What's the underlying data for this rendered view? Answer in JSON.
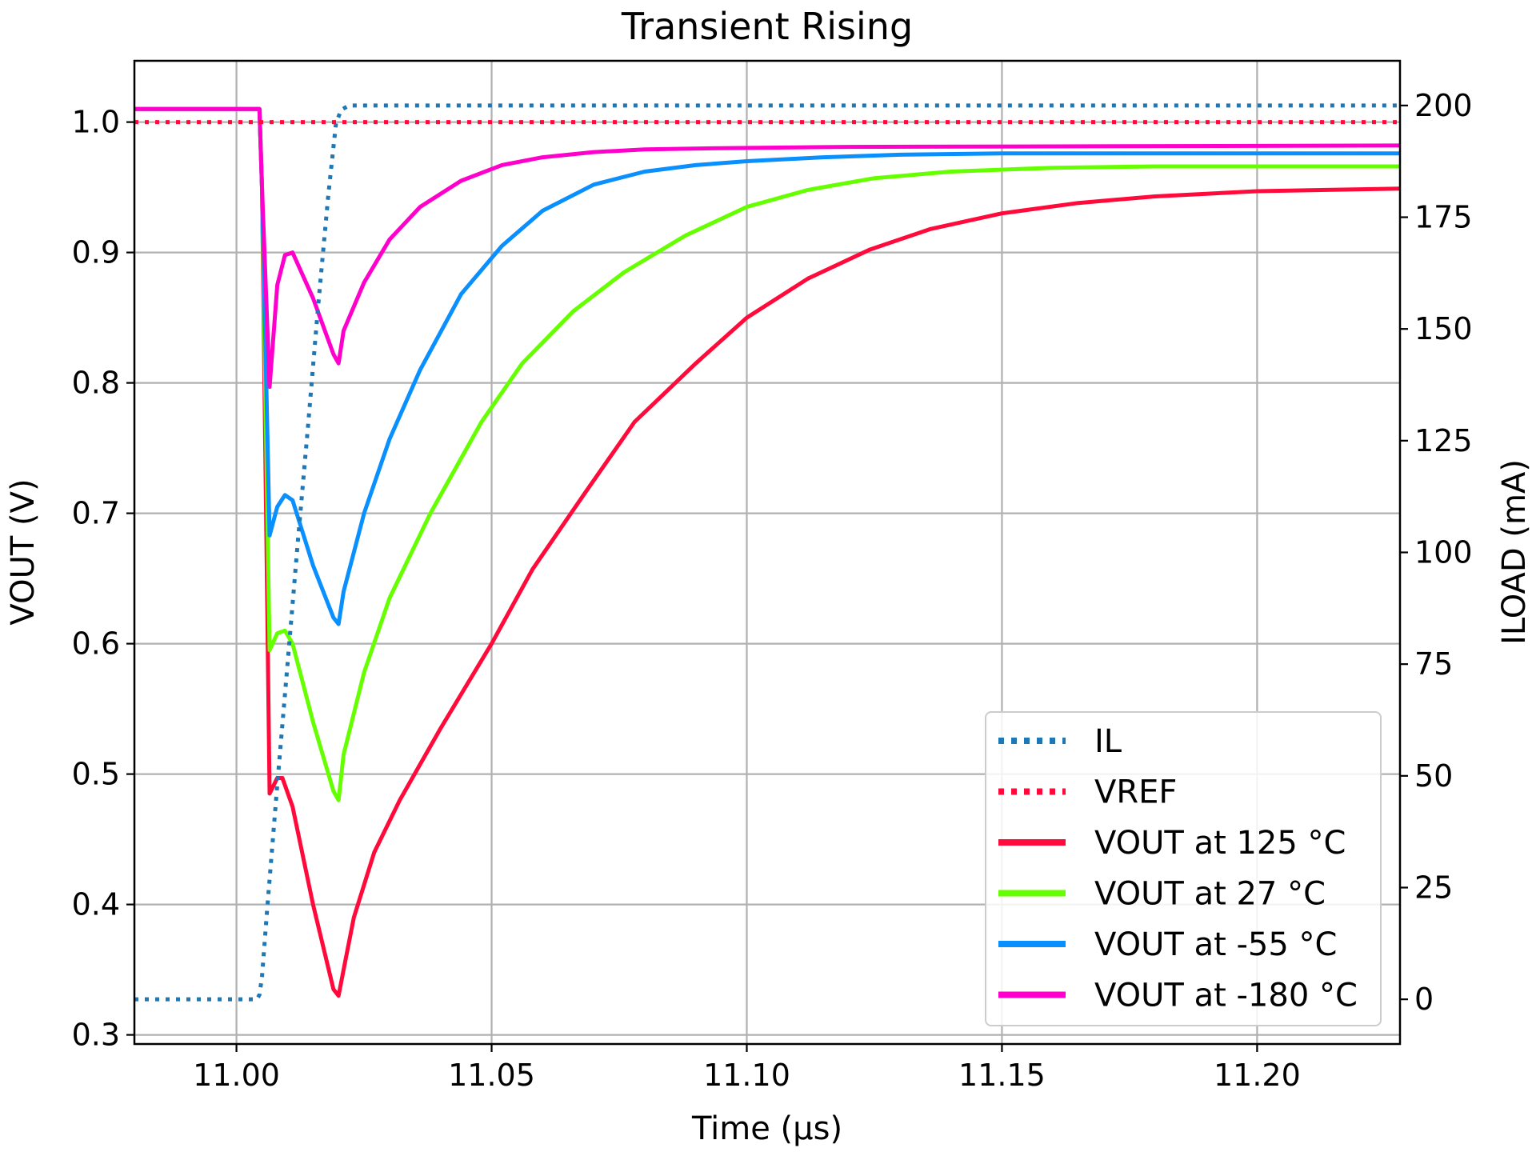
{
  "chart_data": {
    "type": "line",
    "title": "Transient Rising",
    "xlabel": "Time (µs)",
    "ylabel": "VOUT (V)",
    "y2label": "ILOAD (mA)",
    "xlim": [
      10.98,
      11.228
    ],
    "ylim": [
      0.293,
      1.047
    ],
    "y2lim": [
      -10,
      210
    ],
    "xticks": [
      11.0,
      11.05,
      11.1,
      11.15,
      11.2
    ],
    "xtick_labels": [
      "11.00",
      "11.05",
      "11.10",
      "11.15",
      "11.20"
    ],
    "yticks": [
      0.3,
      0.4,
      0.5,
      0.6,
      0.7,
      0.8,
      0.9,
      1.0
    ],
    "ytick_labels": [
      "0.3",
      "0.4",
      "0.5",
      "0.6",
      "0.7",
      "0.8",
      "0.9",
      "1.0"
    ],
    "y2ticks": [
      0,
      25,
      50,
      75,
      100,
      125,
      150,
      175,
      200
    ],
    "y2tick_labels": [
      "0",
      "25",
      "50",
      "75",
      "100",
      "125",
      "150",
      "175",
      "200"
    ],
    "grid": true,
    "legend_position": "lower-right",
    "series": [
      {
        "name": "IL",
        "axis": "right",
        "style": "dotted",
        "color": "#1f77b4",
        "x": [
          10.98,
          11.004,
          11.0045,
          11.005,
          11.006,
          11.008,
          11.01,
          11.012,
          11.014,
          11.016,
          11.018,
          11.0195,
          11.0205,
          11.022,
          11.228
        ],
        "y": [
          0,
          0,
          1,
          5,
          20,
          48,
          75,
          102,
          128,
          155,
          180,
          196,
          199,
          200,
          200
        ]
      },
      {
        "name": "VREF",
        "axis": "left",
        "style": "dotted",
        "color": "#ff0a3a",
        "x": [
          10.98,
          11.228
        ],
        "y": [
          1.0,
          1.0
        ]
      },
      {
        "name": "VOUT at 125 °C",
        "axis": "left",
        "style": "solid",
        "color": "#ff0a3a",
        "x": [
          10.98,
          11.0045,
          11.005,
          11.0065,
          11.008,
          11.009,
          11.011,
          11.015,
          11.019,
          11.02,
          11.021,
          11.023,
          11.027,
          11.032,
          11.04,
          11.05,
          11.058,
          11.068,
          11.078,
          11.09,
          11.1,
          11.112,
          11.124,
          11.136,
          11.15,
          11.165,
          11.18,
          11.2,
          11.228
        ],
        "y": [
          1.01,
          1.01,
          0.95,
          0.485,
          0.497,
          0.497,
          0.475,
          0.4,
          0.335,
          0.33,
          0.35,
          0.39,
          0.44,
          0.48,
          0.535,
          0.6,
          0.657,
          0.714,
          0.77,
          0.815,
          0.85,
          0.88,
          0.902,
          0.918,
          0.93,
          0.938,
          0.943,
          0.947,
          0.949
        ]
      },
      {
        "name": "VOUT at 27 °C",
        "axis": "left",
        "style": "solid",
        "color": "#66ff00",
        "x": [
          10.98,
          11.0045,
          11.005,
          11.0065,
          11.008,
          11.0095,
          11.011,
          11.015,
          11.019,
          11.02,
          11.021,
          11.025,
          11.03,
          11.038,
          11.048,
          11.056,
          11.066,
          11.076,
          11.088,
          11.1,
          11.112,
          11.125,
          11.14,
          11.16,
          11.18,
          11.2,
          11.228
        ],
        "y": [
          1.01,
          1.01,
          0.95,
          0.595,
          0.608,
          0.61,
          0.6,
          0.54,
          0.487,
          0.48,
          0.515,
          0.578,
          0.635,
          0.7,
          0.77,
          0.815,
          0.855,
          0.885,
          0.913,
          0.935,
          0.948,
          0.957,
          0.962,
          0.965,
          0.966,
          0.966,
          0.966
        ]
      },
      {
        "name": "VOUT at -55 °C",
        "axis": "left",
        "style": "solid",
        "color": "#0a8fff",
        "x": [
          10.98,
          11.0045,
          11.005,
          11.0065,
          11.008,
          11.0095,
          11.011,
          11.015,
          11.019,
          11.02,
          11.021,
          11.025,
          11.03,
          11.036,
          11.044,
          11.052,
          11.06,
          11.07,
          11.08,
          11.09,
          11.1,
          11.115,
          11.13,
          11.15,
          11.228
        ],
        "y": [
          1.01,
          1.01,
          0.95,
          0.683,
          0.705,
          0.714,
          0.71,
          0.66,
          0.62,
          0.615,
          0.64,
          0.7,
          0.757,
          0.81,
          0.868,
          0.905,
          0.932,
          0.952,
          0.962,
          0.967,
          0.97,
          0.973,
          0.975,
          0.976,
          0.976
        ]
      },
      {
        "name": "VOUT at -180 °C",
        "axis": "left",
        "style": "solid",
        "color": "#ff00cc",
        "x": [
          10.98,
          11.0045,
          11.005,
          11.0065,
          11.008,
          11.0095,
          11.011,
          11.015,
          11.019,
          11.02,
          11.021,
          11.025,
          11.03,
          11.036,
          11.044,
          11.052,
          11.06,
          11.07,
          11.08,
          11.095,
          11.12,
          11.228
        ],
        "y": [
          1.01,
          1.01,
          0.95,
          0.797,
          0.875,
          0.898,
          0.9,
          0.865,
          0.822,
          0.815,
          0.84,
          0.877,
          0.91,
          0.935,
          0.955,
          0.967,
          0.973,
          0.977,
          0.979,
          0.98,
          0.981,
          0.982
        ]
      }
    ]
  }
}
